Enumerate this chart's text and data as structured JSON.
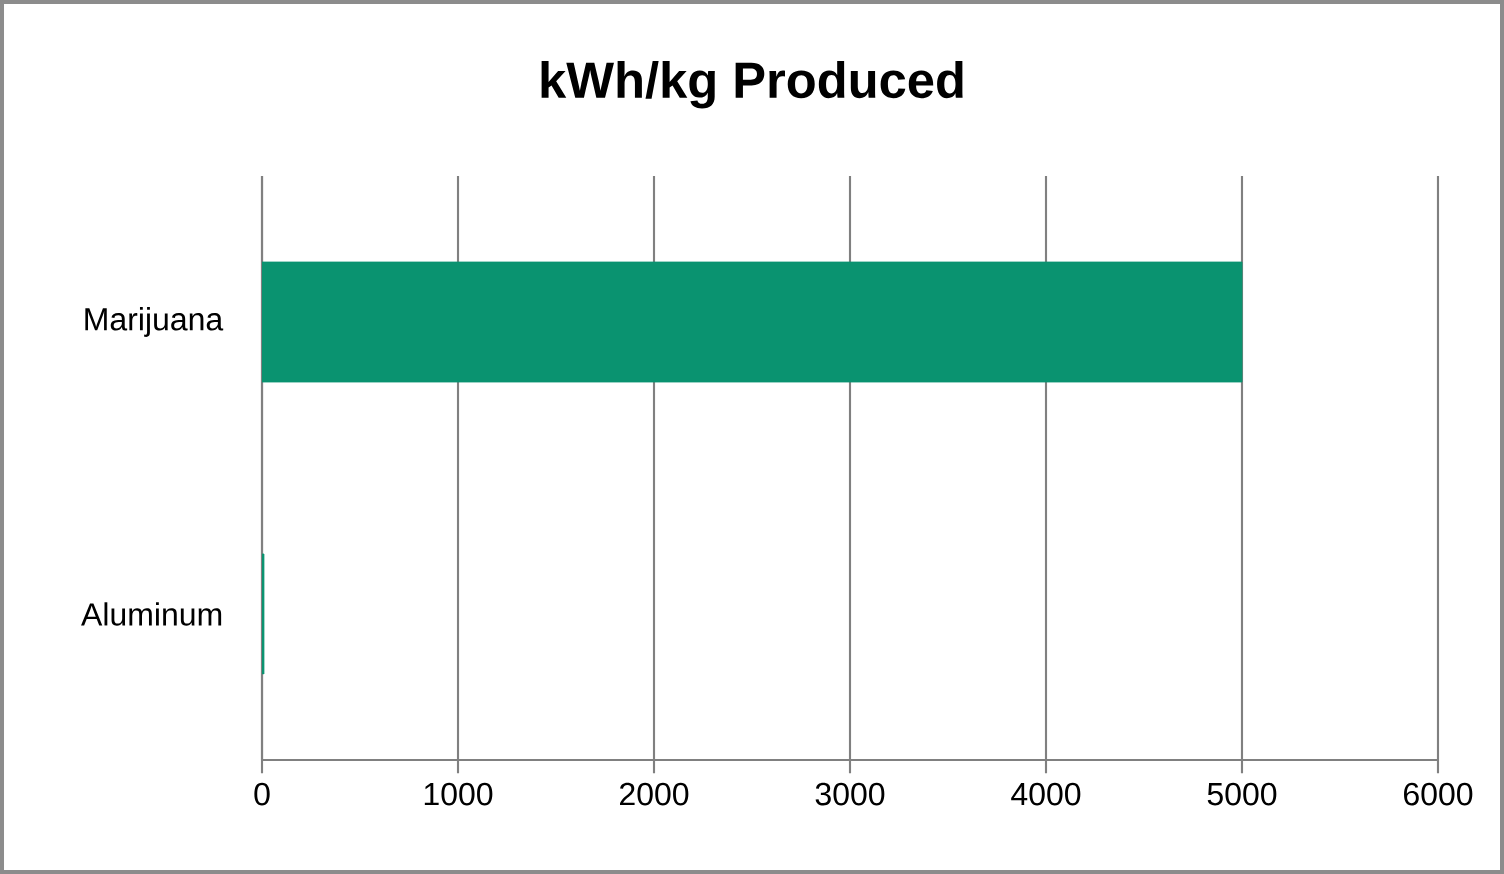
{
  "chart_data": {
    "type": "bar",
    "orientation": "horizontal",
    "title": "kWh/kg Produced",
    "categories": [
      "Marijuana",
      "Aluminum"
    ],
    "values": [
      5000,
      10
    ],
    "color": "#0a9370",
    "xlim": [
      0,
      6000
    ],
    "xticks": [
      0,
      1000,
      2000,
      3000,
      4000,
      5000,
      6000
    ],
    "grid": "x"
  }
}
